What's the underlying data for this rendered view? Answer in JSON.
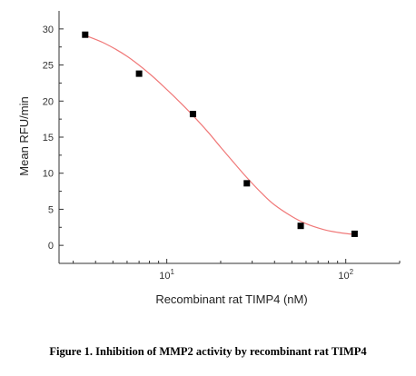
{
  "chart_data": {
    "type": "scatter",
    "xlabel": "Recombinant rat TIMP4 (nM)",
    "ylabel": "Mean RFU/min",
    "x_scale": "log",
    "xlim": [
      2.5,
      200
    ],
    "ylim": [
      -2.5,
      32.5
    ],
    "y_ticks": [
      0,
      5,
      10,
      15,
      20,
      25,
      30
    ],
    "x_ticks": [
      {
        "value": 10,
        "base": "10",
        "exp": "1"
      },
      {
        "value": 100,
        "base": "10",
        "exp": "2"
      }
    ],
    "series": [
      {
        "marker": "square",
        "x": [
          3.5,
          7,
          14,
          28,
          56,
          112
        ],
        "y": [
          29.2,
          23.8,
          18.2,
          8.6,
          2.7,
          1.6
        ]
      }
    ],
    "fit_curve": {
      "color": "#f07878",
      "x": [
        3.5,
        4.5,
        6,
        8,
        10,
        12,
        14,
        17,
        20,
        24,
        28,
        34,
        40,
        50,
        60,
        75,
        90,
        112
      ],
      "y": [
        29.1,
        28.0,
        26.2,
        23.8,
        21.6,
        19.7,
        18.0,
        15.7,
        13.6,
        11.3,
        9.4,
        7.2,
        5.6,
        4.0,
        3.0,
        2.2,
        1.8,
        1.5
      ]
    },
    "grid": false,
    "legend": "none",
    "colors": {
      "marker": "#000000",
      "curve": "#f07878",
      "axis": "#333333"
    }
  },
  "caption": "Figure 1. Inhibition of MMP2 activity by recombinant rat TIMP4"
}
